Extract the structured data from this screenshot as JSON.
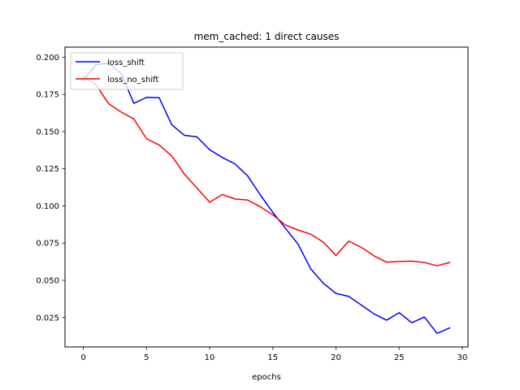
{
  "chart_data": {
    "type": "line",
    "title": "mem_cached: 1 direct causes",
    "xlabel": "epochs",
    "ylabel": "",
    "xlim": [
      -1.45,
      30.45
    ],
    "ylim": [
      0.0052,
      0.2068
    ],
    "xticks": [
      0,
      5,
      10,
      15,
      20,
      25,
      30
    ],
    "yticks": [
      0.025,
      0.05,
      0.075,
      0.1,
      0.125,
      0.15,
      0.175,
      0.2
    ],
    "ytick_labels": [
      "0.025",
      "0.050",
      "0.075",
      "0.100",
      "0.125",
      "0.150",
      "0.175",
      "0.200"
    ],
    "grid": false,
    "legend_position": "upper-left",
    "x": [
      0,
      1,
      2,
      3,
      4,
      5,
      6,
      7,
      8,
      9,
      10,
      11,
      12,
      13,
      14,
      15,
      16,
      17,
      18,
      19,
      20,
      21,
      22,
      23,
      24,
      25,
      26,
      27,
      28,
      29
    ],
    "series": [
      {
        "name": "loss_shift",
        "color": "#0000ff",
        "values": [
          0.1845,
          0.195,
          0.196,
          0.189,
          0.169,
          0.173,
          0.1728,
          0.1546,
          0.1475,
          0.1464,
          0.1378,
          0.1326,
          0.1283,
          0.1203,
          0.1075,
          0.0957,
          0.085,
          0.0743,
          0.0577,
          0.048,
          0.0412,
          0.0392,
          0.0334,
          0.0275,
          0.0232,
          0.0282,
          0.0215,
          0.0253,
          0.0143,
          0.018
        ]
      },
      {
        "name": "loss_no_shift",
        "color": "#ff0000",
        "values": [
          0.187,
          0.1815,
          0.1688,
          0.1631,
          0.1585,
          0.1452,
          0.141,
          0.1336,
          0.1214,
          0.112,
          0.1025,
          0.1077,
          0.1047,
          0.104,
          0.0995,
          0.094,
          0.0872,
          0.0838,
          0.081,
          0.0757,
          0.0667,
          0.0763,
          0.0722,
          0.0665,
          0.0622,
          0.0627,
          0.0629,
          0.062,
          0.0598,
          0.062
        ]
      }
    ]
  }
}
